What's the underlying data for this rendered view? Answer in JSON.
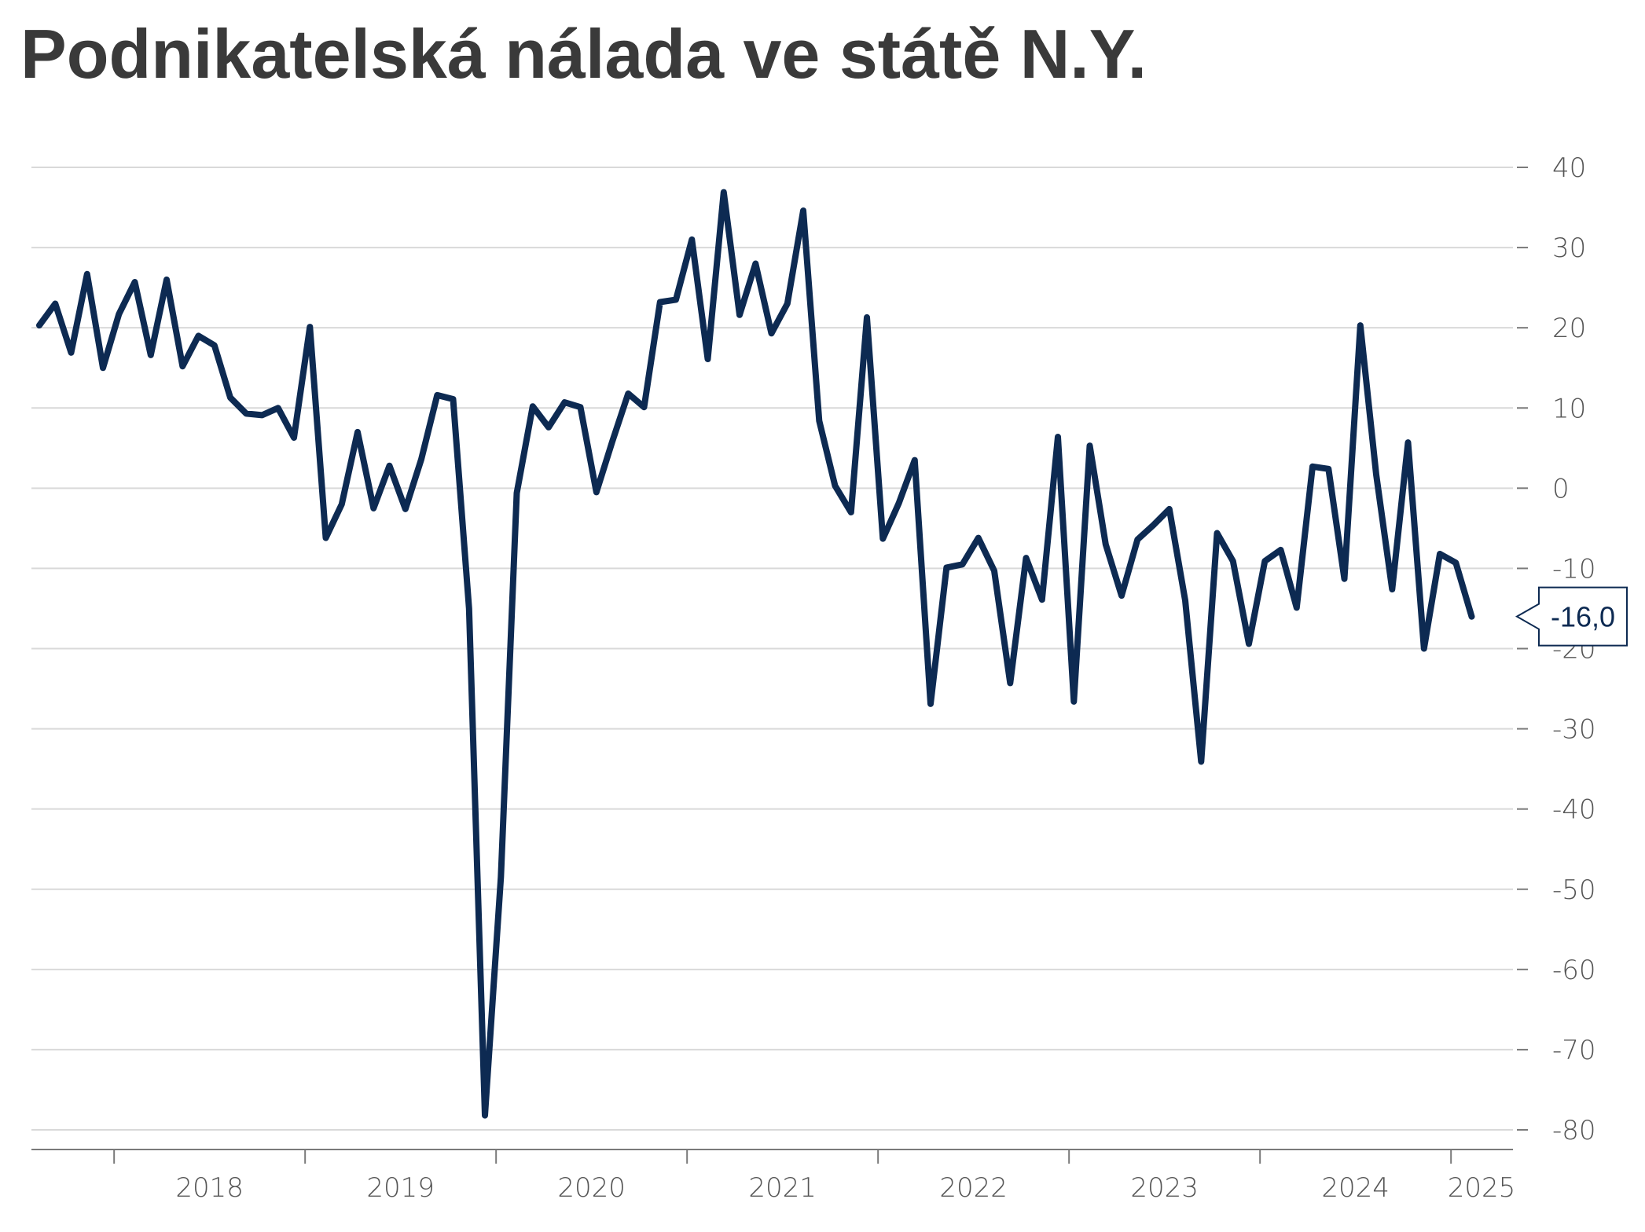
{
  "chart_data": {
    "type": "line",
    "title": "Podnikatelská nálada ve státě N.Y.",
    "xlabel": "",
    "ylabel": "",
    "ylim": [
      -80,
      40
    ],
    "yticks": [
      40,
      30,
      20,
      10,
      0,
      -10,
      -20,
      -30,
      -40,
      -50,
      -60,
      -70,
      -80
    ],
    "ytick_labels": [
      "40",
      "30",
      "20",
      "10",
      "0",
      "-10",
      "-20",
      "-30",
      "-40",
      "-50",
      "-60",
      "-70",
      "-80"
    ],
    "xtick_labels": [
      "2018",
      "2019",
      "2020",
      "2021",
      "2022",
      "2023",
      "2024",
      "2025"
    ],
    "start": "2017-08",
    "grid": true,
    "y_axis_side": "right",
    "line_color": "#0d2a52",
    "last_value_label": "-16,0",
    "series": [
      {
        "values": [
          20.3,
          23.0,
          16.9,
          26.7,
          15.0,
          21.7,
          25.7,
          16.6,
          26.0,
          15.2,
          19.0,
          17.8,
          11.3,
          9.3,
          9.1,
          10.0,
          6.3,
          20.1,
          -6.2,
          -2.0,
          7.0,
          -2.5,
          2.8,
          -2.6,
          3.6,
          11.6,
          11.1,
          -15.0,
          -78.2,
          -48.5,
          -0.6,
          10.2,
          7.6,
          10.7,
          10.1,
          -0.5,
          5.8,
          11.8,
          10.1,
          23.2,
          23.5,
          31.0,
          16.1,
          36.9,
          21.6,
          28.0,
          19.3,
          23.0,
          34.6,
          8.4,
          0.3,
          -3.0,
          21.3,
          -6.3,
          -1.9,
          3.5,
          -26.9,
          -9.9,
          -9.5,
          -6.2,
          -10.3,
          -24.3,
          -8.7,
          -13.9,
          6.4,
          -26.6,
          5.3,
          -7.0,
          -13.4,
          -6.4,
          -4.6,
          -2.6,
          -14.0,
          -34.1,
          -5.6,
          -9.1,
          -19.4,
          -9.1,
          -7.7,
          -14.9,
          2.7,
          2.4,
          -11.3,
          20.3,
          1.7,
          -12.6,
          5.7,
          -20.0,
          -8.2,
          -9.3,
          -16.0
        ]
      }
    ]
  }
}
